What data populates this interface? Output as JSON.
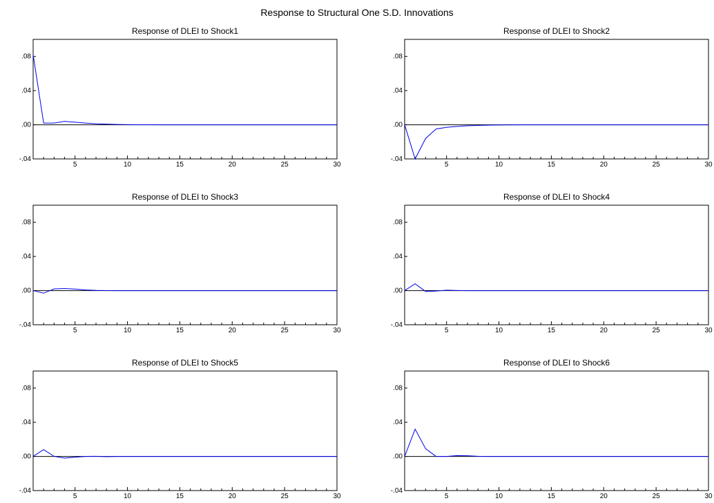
{
  "main_title": "Response to Structural One S.D. Innovations",
  "colors": {
    "line": "#0000ee",
    "zero_line": "#000000",
    "axis": "#000000"
  },
  "chart_data": [
    {
      "type": "line",
      "title": "Response of DLEI to Shock1",
      "x": [
        1,
        2,
        3,
        4,
        5,
        6,
        7,
        8,
        9,
        10,
        11,
        12,
        13,
        14,
        15,
        16,
        17,
        18,
        19,
        20,
        21,
        22,
        23,
        24,
        25,
        26,
        27,
        28,
        29,
        30
      ],
      "series": [
        {
          "values": [
            0.082,
            0.002,
            0.002,
            0.004,
            0.003,
            0.002,
            0.0012,
            0.0008,
            0.0004,
            0.0002,
            0.0001,
            0.0001,
            0,
            0,
            0,
            0,
            0,
            0,
            0,
            0,
            0,
            0,
            0,
            0,
            0,
            0,
            0,
            0,
            0,
            0
          ]
        }
      ],
      "xlim": [
        1,
        30
      ],
      "ylim": [
        -0.04,
        0.1
      ],
      "yticks": [
        -0.04,
        0.0,
        0.04,
        0.08
      ],
      "ytick_labels": [
        "-.04",
        ".00",
        ".04",
        ".08"
      ],
      "xticks": [
        5,
        10,
        15,
        20,
        25,
        30
      ],
      "xtick_labels": [
        "5",
        "10",
        "15",
        "20",
        "25",
        "30"
      ]
    },
    {
      "type": "line",
      "title": "Response of DLEI to Shock2",
      "x": [
        1,
        2,
        3,
        4,
        5,
        6,
        7,
        8,
        9,
        10,
        11,
        12,
        13,
        14,
        15,
        16,
        17,
        18,
        19,
        20,
        21,
        22,
        23,
        24,
        25,
        26,
        27,
        28,
        29,
        30
      ],
      "series": [
        {
          "values": [
            0.0,
            -0.04,
            -0.016,
            -0.005,
            -0.003,
            -0.002,
            -0.0012,
            -0.0007,
            -0.0004,
            -0.0002,
            -0.0001,
            0,
            0,
            0,
            0,
            0,
            0,
            0,
            0,
            0,
            0,
            0,
            0,
            0,
            0,
            0,
            0,
            0,
            0,
            0
          ]
        }
      ],
      "xlim": [
        1,
        30
      ],
      "ylim": [
        -0.04,
        0.1
      ],
      "yticks": [
        -0.04,
        0.0,
        0.04,
        0.08
      ],
      "ytick_labels": [
        "-.04",
        ".00",
        ".04",
        ".08"
      ],
      "xticks": [
        5,
        10,
        15,
        20,
        25,
        30
      ],
      "xtick_labels": [
        "5",
        "10",
        "15",
        "20",
        "25",
        "30"
      ]
    },
    {
      "type": "line",
      "title": "Response of DLEI to Shock3",
      "x": [
        1,
        2,
        3,
        4,
        5,
        6,
        7,
        8,
        9,
        10,
        11,
        12,
        13,
        14,
        15,
        16,
        17,
        18,
        19,
        20,
        21,
        22,
        23,
        24,
        25,
        26,
        27,
        28,
        29,
        30
      ],
      "series": [
        {
          "values": [
            0.0,
            -0.003,
            0.002,
            0.0025,
            0.0018,
            0.0008,
            0.0003,
            0.0001,
            0,
            0,
            0,
            0,
            0,
            0,
            0,
            0,
            0,
            0,
            0,
            0,
            0,
            0,
            0,
            0,
            0,
            0,
            0,
            0,
            0,
            0
          ]
        }
      ],
      "xlim": [
        1,
        30
      ],
      "ylim": [
        -0.04,
        0.1
      ],
      "yticks": [
        -0.04,
        0.0,
        0.04,
        0.08
      ],
      "ytick_labels": [
        "-.04",
        ".00",
        ".04",
        ".08"
      ],
      "xticks": [
        5,
        10,
        15,
        20,
        25,
        30
      ],
      "xtick_labels": [
        "5",
        "10",
        "15",
        "20",
        "25",
        "30"
      ]
    },
    {
      "type": "line",
      "title": "Response of DLEI to Shock4",
      "x": [
        1,
        2,
        3,
        4,
        5,
        6,
        7,
        8,
        9,
        10,
        11,
        12,
        13,
        14,
        15,
        16,
        17,
        18,
        19,
        20,
        21,
        22,
        23,
        24,
        25,
        26,
        27,
        28,
        29,
        30
      ],
      "series": [
        {
          "values": [
            0.0,
            0.008,
            -0.001,
            -0.0005,
            0.0005,
            0.0002,
            0,
            0,
            0,
            0,
            0,
            0,
            0,
            0,
            0,
            0,
            0,
            0,
            0,
            0,
            0,
            0,
            0,
            0,
            0,
            0,
            0,
            0,
            0,
            0
          ]
        }
      ],
      "xlim": [
        1,
        30
      ],
      "ylim": [
        -0.04,
        0.1
      ],
      "yticks": [
        -0.04,
        0.0,
        0.04,
        0.08
      ],
      "ytick_labels": [
        "-.04",
        ".00",
        ".04",
        ".08"
      ],
      "xticks": [
        5,
        10,
        15,
        20,
        25,
        30
      ],
      "xtick_labels": [
        "5",
        "10",
        "15",
        "20",
        "25",
        "30"
      ]
    },
    {
      "type": "line",
      "title": "Response of DLEI to Shock5",
      "x": [
        1,
        2,
        3,
        4,
        5,
        6,
        7,
        8,
        9,
        10,
        11,
        12,
        13,
        14,
        15,
        16,
        17,
        18,
        19,
        20,
        21,
        22,
        23,
        24,
        25,
        26,
        27,
        28,
        29,
        30
      ],
      "series": [
        {
          "values": [
            0.0,
            0.008,
            0.0,
            -0.002,
            -0.001,
            0.0,
            0.0002,
            -0.0003,
            0,
            0,
            0,
            0,
            0,
            0,
            0,
            0,
            0,
            0,
            0,
            0,
            0,
            0,
            0,
            0,
            0,
            0,
            0,
            0,
            0,
            0
          ]
        }
      ],
      "xlim": [
        1,
        30
      ],
      "ylim": [
        -0.04,
        0.1
      ],
      "yticks": [
        -0.04,
        0.0,
        0.04,
        0.08
      ],
      "ytick_labels": [
        "-.04",
        ".00",
        ".04",
        ".08"
      ],
      "xticks": [
        5,
        10,
        15,
        20,
        25,
        30
      ],
      "xtick_labels": [
        "5",
        "10",
        "15",
        "20",
        "25",
        "30"
      ]
    },
    {
      "type": "line",
      "title": "Response of DLEI to Shock6",
      "x": [
        1,
        2,
        3,
        4,
        5,
        6,
        7,
        8,
        9,
        10,
        11,
        12,
        13,
        14,
        15,
        16,
        17,
        18,
        19,
        20,
        21,
        22,
        23,
        24,
        25,
        26,
        27,
        28,
        29,
        30
      ],
      "series": [
        {
          "values": [
            0.0,
            0.032,
            0.009,
            0.0,
            0.0,
            0.001,
            0.0008,
            0.0002,
            0,
            0,
            0,
            0,
            0,
            0,
            0,
            0,
            0,
            0,
            0,
            0,
            0,
            0,
            0,
            0,
            0,
            0,
            0,
            0,
            0,
            0
          ]
        }
      ],
      "xlim": [
        1,
        30
      ],
      "ylim": [
        -0.04,
        0.1
      ],
      "yticks": [
        -0.04,
        0.0,
        0.04,
        0.08
      ],
      "ytick_labels": [
        "-.04",
        ".00",
        ".04",
        ".08"
      ],
      "xticks": [
        5,
        10,
        15,
        20,
        25,
        30
      ],
      "xtick_labels": [
        "5",
        "10",
        "15",
        "20",
        "25",
        "30"
      ]
    }
  ]
}
